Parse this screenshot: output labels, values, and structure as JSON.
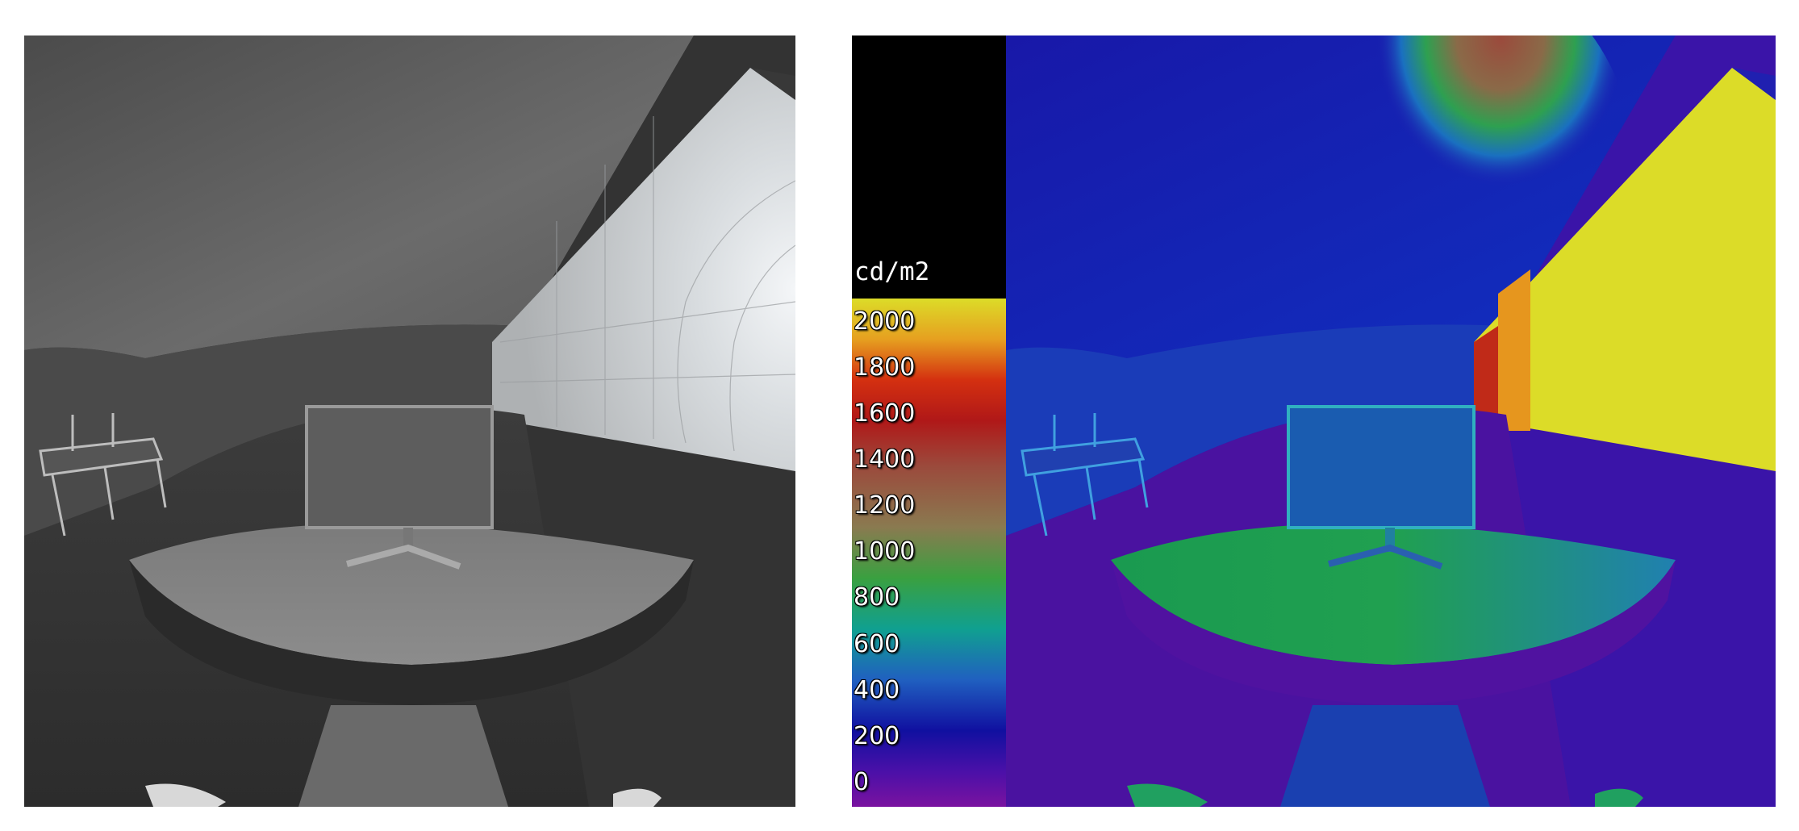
{
  "legend": {
    "unit": "cd/m2",
    "ticks": [
      "2000",
      "1800",
      "1600",
      "1400",
      "1200",
      "1000",
      "800",
      "600",
      "400",
      "200",
      "0"
    ]
  },
  "colors": {
    "scale_top": "#dcdc28",
    "scale_mid": "#9b4a3c",
    "scale_low": "#1aa040",
    "scale_base": "#7a12a0",
    "background": "#000000"
  }
}
